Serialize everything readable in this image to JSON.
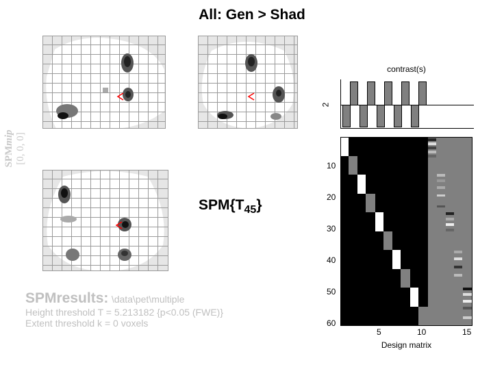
{
  "title": "All: Gen > Shad",
  "side_label": {
    "line1_a": "SPM",
    "line1_b": "mip",
    "line2": "[0, 0, 0]"
  },
  "stat": {
    "prefix": "SPM{T",
    "df": "45",
    "suffix": "}"
  },
  "results": {
    "heading": "SPMresults:",
    "path": "\\data\\pet\\multiple",
    "height": "Height threshold T = 5.213182  {p<0.05 (FWE)}",
    "extent": "Extent threshold k = 0 voxels"
  },
  "contrast": {
    "title": "contrast(s)",
    "number": "2"
  },
  "design": {
    "xlabel": "Design matrix",
    "yticks": [
      "10",
      "20",
      "30",
      "40",
      "50",
      "60"
    ],
    "xticks": [
      "5",
      "10",
      "15"
    ]
  },
  "colors": {
    "grid": "#9a9a9a",
    "glass": "#e6e6e6",
    "marker": "#ff0000"
  }
}
